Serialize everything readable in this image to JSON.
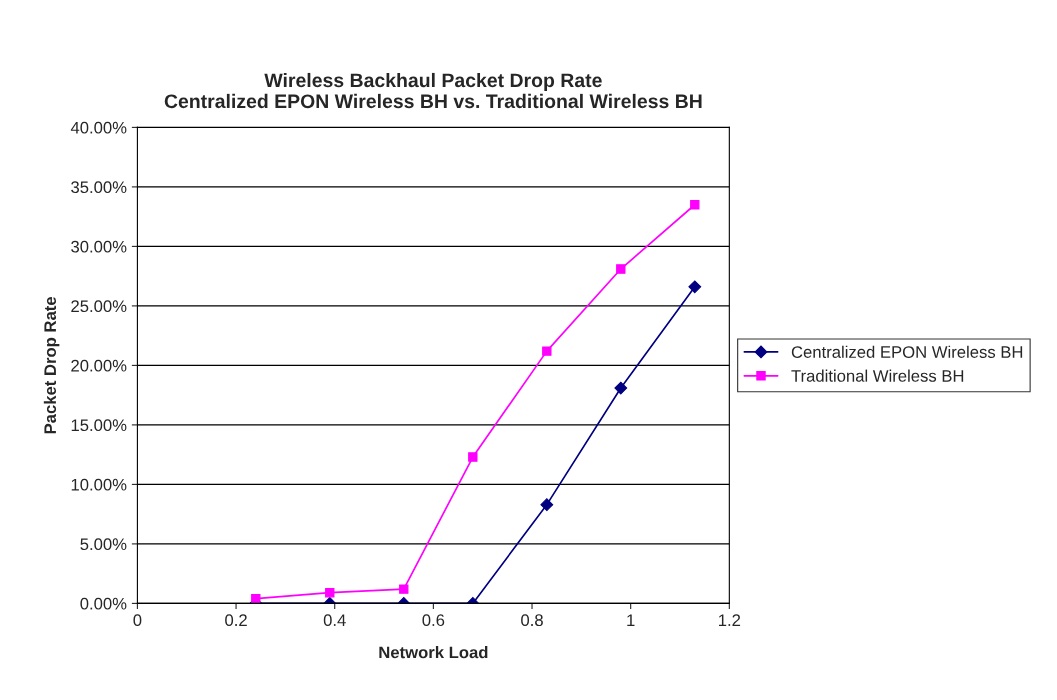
{
  "chart_data": {
    "type": "line",
    "title": "Wireless Backhaul Packet Drop Rate\nCentralized EPON Wireless BH vs. Traditional Wireless BH",
    "xlabel": "Network Load",
    "ylabel": "Packet Drop Rate",
    "x": [
      0.24,
      0.39,
      0.54,
      0.68,
      0.83,
      0.98,
      1.13
    ],
    "series": [
      {
        "name": "Centralized EPON Wireless BH",
        "color": "#000080",
        "marker": "diamond",
        "values": [
          0,
          0,
          0,
          0,
          8.3,
          18.1,
          26.6
        ]
      },
      {
        "name": "Traditional Wireless BH",
        "color": "#ff00ff",
        "marker": "square",
        "values": [
          0.4,
          0.9,
          1.2,
          12.3,
          21.2,
          28.1,
          33.5
        ]
      }
    ],
    "xlim": [
      0,
      1.2
    ],
    "xticks": [
      0,
      0.2,
      0.4,
      0.6,
      0.8,
      1,
      1.2
    ],
    "ylim": [
      0,
      40
    ],
    "yticks": [
      {
        "value": 0,
        "label": "0.00%"
      },
      {
        "value": 5,
        "label": "5.00%"
      },
      {
        "value": 10,
        "label": "10.00%"
      },
      {
        "value": 15,
        "label": "15.00%"
      },
      {
        "value": 20,
        "label": "20.00%"
      },
      {
        "value": 25,
        "label": "25.00%"
      },
      {
        "value": 30,
        "label": "30.00%"
      },
      {
        "value": 35,
        "label": "35.00%"
      },
      {
        "value": 40,
        "label": "40.00%"
      }
    ],
    "grid": "y",
    "legend": "right",
    "line_style": "solid"
  }
}
